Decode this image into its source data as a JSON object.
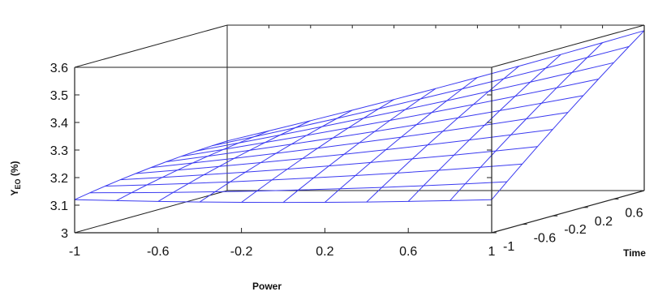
{
  "chart_data": {
    "type": "surface",
    "xlabel": "Power",
    "ylabel": "Time",
    "zlabel": "Y",
    "zlabel_sub": "EO",
    "zlabel_unit": " (%)",
    "x_ticks": [
      "-1",
      "-0.6",
      "-0.2",
      "0.2",
      "0.6",
      "1"
    ],
    "y_ticks": [
      "-1",
      "-0.6",
      "-0.2",
      "0.2",
      "0.6"
    ],
    "z_ticks": [
      "3",
      "3.1",
      "3.2",
      "3.3",
      "3.4",
      "3.5",
      "3.6"
    ],
    "xlim": [
      -1,
      1
    ],
    "ylim": [
      -1,
      1
    ],
    "zlim": [
      3,
      3.6
    ],
    "grid_x": [
      -1,
      -0.8,
      -0.6,
      -0.4,
      -0.2,
      0,
      0.2,
      0.4,
      0.6,
      0.8,
      1
    ],
    "grid_y": [
      -1,
      -0.8,
      -0.6,
      -0.4,
      -0.2,
      0,
      0.2,
      0.4,
      0.6,
      0.8,
      1
    ],
    "surface_model": {
      "intercept": 3.25,
      "power": 0.1,
      "time": 0.13,
      "power_time": 0.1,
      "power_sq": 0.01,
      "time_sq": -0.01
    },
    "surface_color": "#3a3af0",
    "box_color": "#222222"
  }
}
